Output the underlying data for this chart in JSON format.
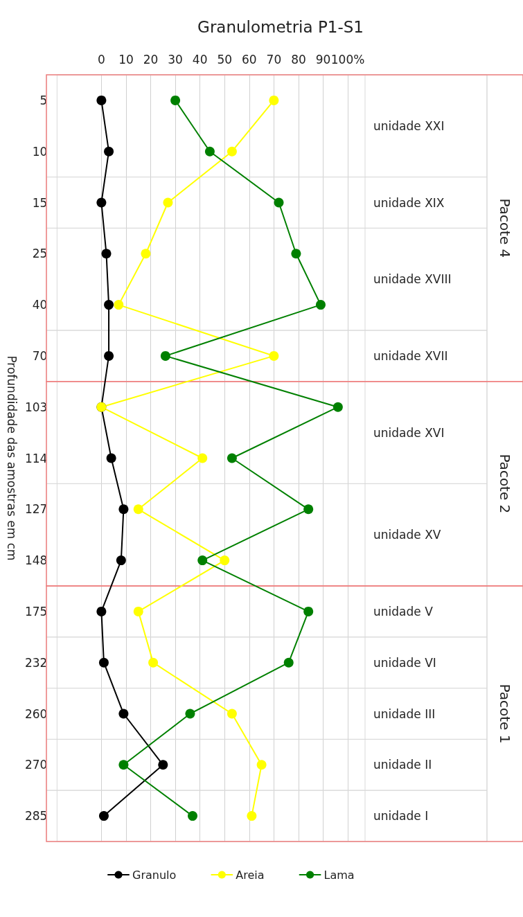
{
  "chart_data": {
    "type": "line",
    "title": "Granulometria P1-S1",
    "ylabel": "Profundidade das amostras em cm",
    "orientation": "horizontal",
    "categories": [
      "5",
      "10",
      "15",
      "25",
      "40",
      "70",
      "103",
      "114",
      "127",
      "148",
      "175",
      "232",
      "260",
      "270",
      "285"
    ],
    "xlim": [
      -18,
      107
    ],
    "xticks": [
      0,
      10,
      20,
      30,
      40,
      50,
      60,
      70,
      80,
      90,
      {
        "value": 100,
        "label": "100%"
      }
    ],
    "series": [
      {
        "name": "Granulo",
        "color": "#000000",
        "values": [
          0,
          3,
          0,
          2,
          3,
          3,
          0,
          4,
          9,
          8,
          0,
          1,
          9,
          25,
          1
        ]
      },
      {
        "name": "Areia",
        "color": "#ffff00",
        "values": [
          70,
          53,
          27,
          18,
          7,
          70,
          0,
          41,
          15,
          50,
          15,
          21,
          53,
          65,
          61
        ]
      },
      {
        "name": "Lama",
        "color": "#008000",
        "values": [
          30,
          44,
          72,
          79,
          89,
          26,
          96,
          53,
          84,
          41,
          84,
          76,
          36,
          9,
          37
        ]
      }
    ],
    "bands": [
      {
        "axis": "y",
        "from": "5",
        "to": "10",
        "label": "unidade XXI",
        "color": "#d9d9d9"
      },
      {
        "axis": "y",
        "from": "15",
        "to": "15",
        "label": "unidade XIX",
        "color": "#d9d9d9"
      },
      {
        "axis": "y",
        "from": "25",
        "to": "40",
        "label": "unidade XVIII",
        "color": "#d9d9d9"
      },
      {
        "axis": "y",
        "from": "70",
        "to": "70",
        "label": "unidade XVII",
        "color": "#d9d9d9"
      },
      {
        "axis": "y",
        "from": "103",
        "to": "114",
        "label": "unidade XVI",
        "color": "#d9d9d9"
      },
      {
        "axis": "y",
        "from": "127",
        "to": "148",
        "label": "unidade XV",
        "color": "#d9d9d9"
      },
      {
        "axis": "y",
        "from": "175",
        "to": "175",
        "label": "unidade V",
        "color": "#d9d9d9"
      },
      {
        "axis": "y",
        "from": "232",
        "to": "232",
        "label": "unidade VI",
        "color": "#d9d9d9"
      },
      {
        "axis": "y",
        "from": "260",
        "to": "260",
        "label": "unidade III",
        "color": "#d9d9d9"
      },
      {
        "axis": "y",
        "from": "270",
        "to": "270",
        "label": "unidade II",
        "color": "#d9d9d9"
      },
      {
        "axis": "y",
        "from": "285",
        "to": "285",
        "label": "unidade I",
        "color": "#d9d9d9"
      },
      {
        "axis": "y",
        "from": "5",
        "to": "70",
        "label": "Pacote 4",
        "color": "#f08080"
      },
      {
        "axis": "y",
        "from": "103",
        "to": "148",
        "label": "Pacote 2",
        "color": "#f08080"
      },
      {
        "axis": "y",
        "from": "175",
        "to": "285",
        "label": "Pacote 1",
        "color": "#f08080"
      }
    ],
    "grid": "x",
    "legend": "bottom",
    "marker": "circle",
    "line_style": "solid"
  }
}
